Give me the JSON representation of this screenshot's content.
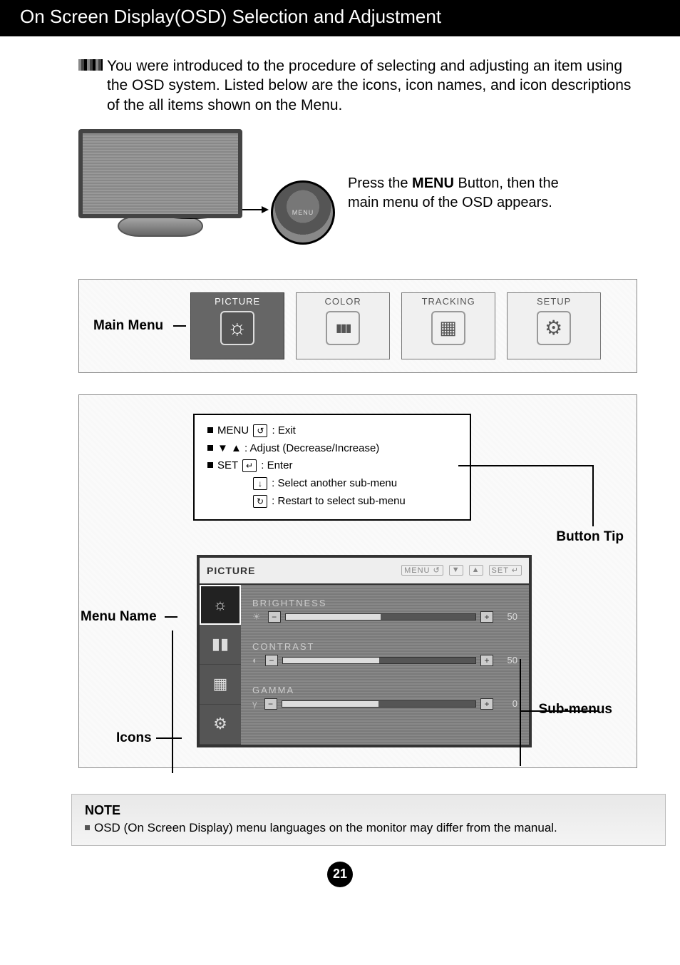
{
  "header": {
    "title": "On Screen Display(OSD) Selection and Adjustment"
  },
  "intro": "You were introduced to the procedure of selecting and adjusting an item using the OSD system. Listed below are the icons, icon names, and icon descriptions of the all items shown on the Menu.",
  "zoom_label": "MENU",
  "menu_caption_prefix": "Press the ",
  "menu_caption_bold": "MENU",
  "menu_caption_suffix": " Button, then the main menu of the OSD appears.",
  "main_menu": {
    "label": "Main Menu",
    "tiles": [
      {
        "label": "PICTURE",
        "active": true,
        "icon": "sun"
      },
      {
        "label": "COLOR",
        "active": false,
        "icon": "color"
      },
      {
        "label": "TRACKING",
        "active": false,
        "icon": "track"
      },
      {
        "label": "SETUP",
        "active": false,
        "icon": "gear"
      }
    ]
  },
  "button_tip": {
    "label": "Button Tip",
    "lines": {
      "l1a": "MENU ",
      "l1b": " : Exit",
      "l2": "▼ ▲ : Adjust (Decrease/Increase)",
      "l3a": "SET ",
      "l3b": " : Enter",
      "l4": " : Select another sub-menu",
      "l5": " : Restart to select sub-menu"
    },
    "icons": {
      "exit": "↺",
      "enter": "↵",
      "down": "↓",
      "restart": "↻"
    }
  },
  "osd": {
    "menu_name_label": "Menu Name",
    "icons_label": "Icons",
    "submenus_label": "Sub-menus",
    "title": "PICTURE",
    "hints": [
      "MENU ↺",
      "▼",
      "▲",
      "SET ↵"
    ],
    "side_icons": [
      "☼",
      "▮▮",
      "▦",
      "⚙"
    ],
    "sliders": [
      {
        "name": "BRIGHTNESS",
        "lead": "☀",
        "value": 50,
        "fill_pct": 50
      },
      {
        "name": "CONTRAST",
        "lead": "◐",
        "value": 50,
        "fill_pct": 50
      },
      {
        "name": "GAMMA",
        "lead": "γ",
        "value": 0,
        "fill_pct": 50
      }
    ]
  },
  "note": {
    "title": "NOTE",
    "body": "OSD (On Screen Display) menu languages on the monitor may differ from the manual."
  },
  "page_number": "21"
}
